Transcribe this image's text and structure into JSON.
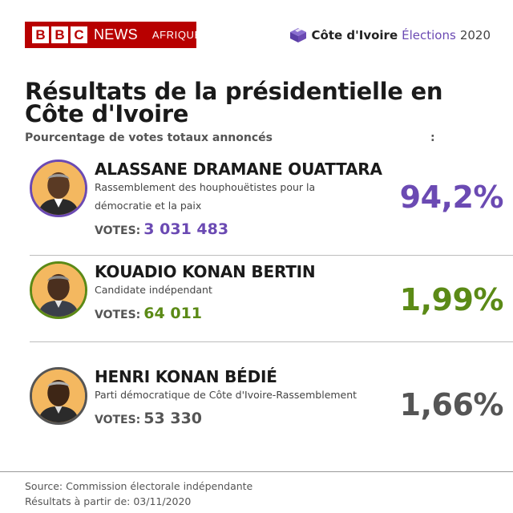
{
  "header": {
    "logo_letters": [
      "B",
      "B",
      "C"
    ],
    "logo_news": "NEWS",
    "logo_region": "AFRIQUE",
    "badge_country": "Côte d'Ivoire",
    "badge_elections": "Élections",
    "badge_year": "2020"
  },
  "title": "Résultats de la présidentielle en Côte d'Ivoire",
  "subtitle": "Pourcentage de votes totaux annoncés",
  "subtitle_suffix": ":",
  "candidates": [
    {
      "name": "ALASSANE DRAMANE OUATTARA",
      "party": "Rassemblement des houphouëtistes pour la démocratie et la paix",
      "votes_label": "VOTES:",
      "votes": "3 031 483",
      "percent": "94,2%",
      "color": "#6b4ab3"
    },
    {
      "name": "KOUADIO KONAN BERTIN",
      "party": "Candidate indépendant",
      "votes_label": "VOTES:",
      "votes": "64 011",
      "percent": "1,99%",
      "color": "#5b8a16"
    },
    {
      "name": "HENRI KONAN BÉDIÉ",
      "party": "Parti démocratique de Côte d'Ivoire-Rassemblement",
      "votes_label": "VOTES:",
      "votes": "53 330",
      "percent": "1,66%",
      "color": "#555555"
    }
  ],
  "footer": {
    "source": "Source: Commission électorale indépendante",
    "as_of": "Résultats à partir de: 03/11/2020"
  },
  "colors": {
    "bbc_red": "#b80000",
    "ouattara": "#6b4ab3",
    "bertin": "#5b8a16",
    "bedie": "#555555",
    "avatar_bg": "#f4b860"
  }
}
